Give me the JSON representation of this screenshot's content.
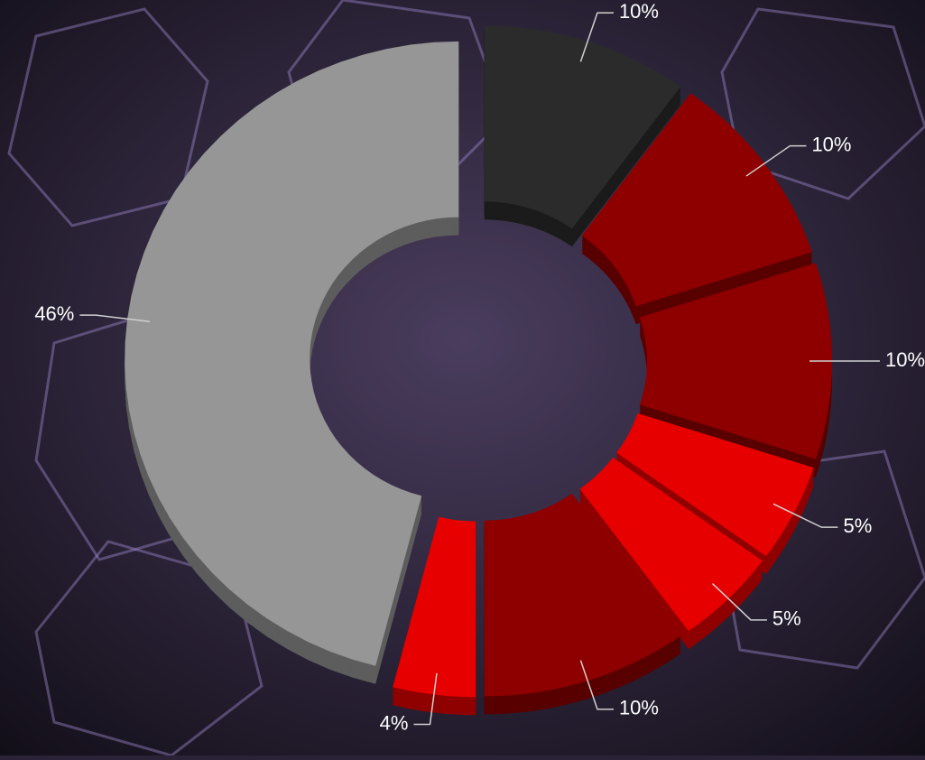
{
  "chart_data": {
    "type": "doughnut",
    "values": [
      10,
      10,
      10,
      5,
      5,
      10,
      4,
      46
    ],
    "value_labels": [
      "10%",
      "10%",
      "10%",
      "5%",
      "5%",
      "10%",
      "4%",
      "46%"
    ],
    "colors": [
      "#2b2b2b",
      "#8e0000",
      "#8e0000",
      "#e60000",
      "#e60000",
      "#8e0000",
      "#e60000",
      "#969696"
    ]
  }
}
